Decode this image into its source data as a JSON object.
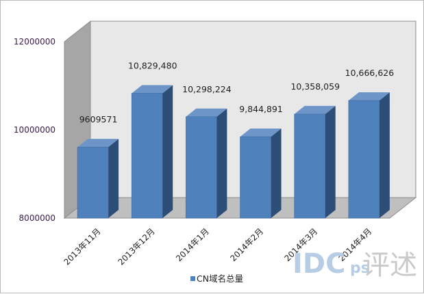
{
  "chart_data": {
    "type": "bar",
    "categories": [
      "2013年11月",
      "2013年12月",
      "2014年1月",
      "2014年2月",
      "2014年3月",
      "2014年4月"
    ],
    "series": [
      {
        "name": "CN域名总量",
        "values": [
          9609571,
          10829480,
          10298224,
          9844891,
          10358059,
          10666626
        ],
        "labels": [
          "9609571",
          "10,829,480",
          "10,298,224",
          "9,844,891",
          "10,358,059",
          "10,666,626"
        ],
        "color": "#4f81bd"
      }
    ],
    "ylim": [
      8000000,
      12000000
    ],
    "yticks": [
      "8000000",
      "10000000",
      "12000000"
    ],
    "grid": false,
    "legend_position": "bottom",
    "style": "3d-column"
  },
  "watermark": {
    "text": "IDC",
    "suffix": "ps",
    "cjk": "评述"
  },
  "colors": {
    "bar_front": "#4f81bd",
    "bar_side": "#2c4d75",
    "bar_top": "#6d95c8",
    "wall": "#e8e8e8",
    "side_wall": "#a6a6a6",
    "floor": "#bfbfbf"
  }
}
